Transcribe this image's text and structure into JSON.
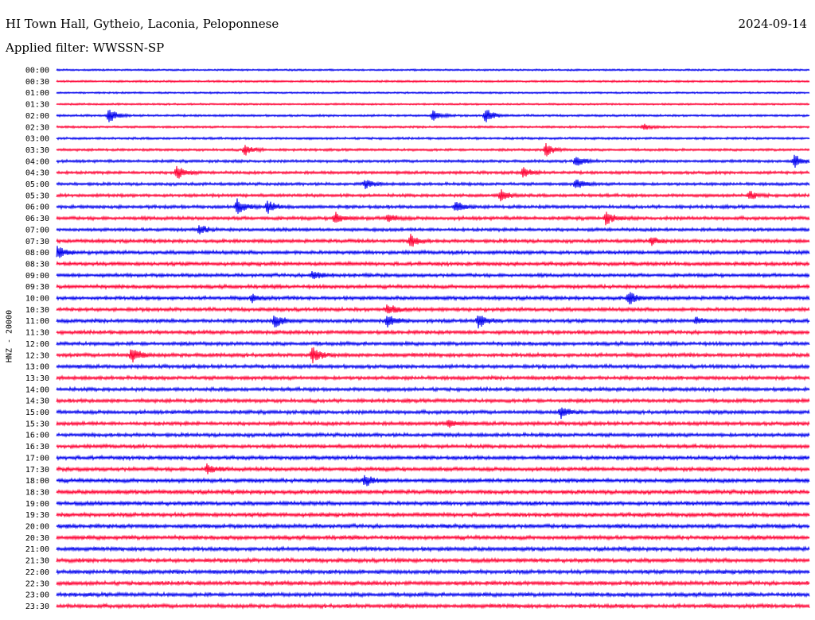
{
  "header": {
    "station": "HI Town Hall, Gytheio, Laconia, Peloponnese",
    "date": "2024-09-14",
    "filter": "Applied filter: WWSSN-SP"
  },
  "chart_data": {
    "type": "line",
    "ylabel": "HNZ - 20000",
    "colors": {
      "even_rows": "#0000ee",
      "odd_rows": "#ff0033"
    },
    "rows": [
      "00:00",
      "00:30",
      "01:00",
      "01:30",
      "02:00",
      "02:30",
      "03:00",
      "03:30",
      "04:00",
      "04:30",
      "05:00",
      "05:30",
      "06:00",
      "06:30",
      "07:00",
      "07:30",
      "08:00",
      "08:30",
      "09:00",
      "09:30",
      "10:00",
      "10:30",
      "11:00",
      "11:30",
      "12:00",
      "12:30",
      "13:00",
      "13:30",
      "14:00",
      "14:30",
      "15:00",
      "15:30",
      "16:00",
      "16:30",
      "17:00",
      "17:30",
      "18:00",
      "18:30",
      "19:00",
      "19:30",
      "20:00",
      "20:30",
      "21:00",
      "21:30",
      "22:00",
      "22:30",
      "23:00",
      "23:30"
    ],
    "noise_level": [
      0.25,
      0.3,
      0.25,
      0.25,
      0.35,
      0.35,
      0.4,
      0.45,
      0.55,
      0.6,
      0.6,
      0.65,
      0.7,
      0.75,
      0.7,
      0.75,
      0.8,
      0.8,
      0.75,
      0.8,
      0.8,
      0.8,
      0.8,
      0.8,
      0.8,
      0.85,
      0.8,
      0.8,
      0.8,
      0.8,
      0.8,
      0.8,
      0.8,
      0.8,
      0.85,
      0.85,
      0.9,
      0.9,
      0.9,
      0.9,
      0.9,
      0.9,
      0.9,
      0.9,
      0.9,
      0.9,
      0.9,
      0.9
    ],
    "events": [
      {
        "row": 4,
        "t": 0.07,
        "amp": 1.0
      },
      {
        "row": 4,
        "t": 0.5,
        "amp": 0.7
      },
      {
        "row": 4,
        "t": 0.57,
        "amp": 1.0
      },
      {
        "row": 5,
        "t": 0.78,
        "amp": 0.4
      },
      {
        "row": 7,
        "t": 0.25,
        "amp": 0.8
      },
      {
        "row": 7,
        "t": 0.65,
        "amp": 0.9
      },
      {
        "row": 8,
        "t": 0.69,
        "amp": 0.8
      },
      {
        "row": 8,
        "t": 0.98,
        "amp": 1.0
      },
      {
        "row": 9,
        "t": 0.16,
        "amp": 1.0
      },
      {
        "row": 9,
        "t": 0.62,
        "amp": 0.7
      },
      {
        "row": 10,
        "t": 0.41,
        "amp": 0.6
      },
      {
        "row": 10,
        "t": 0.69,
        "amp": 0.7
      },
      {
        "row": 11,
        "t": 0.59,
        "amp": 0.8
      },
      {
        "row": 11,
        "t": 0.92,
        "amp": 0.6
      },
      {
        "row": 12,
        "t": 0.24,
        "amp": 1.0
      },
      {
        "row": 12,
        "t": 0.28,
        "amp": 0.9
      },
      {
        "row": 12,
        "t": 0.53,
        "amp": 0.7
      },
      {
        "row": 13,
        "t": 0.37,
        "amp": 0.8
      },
      {
        "row": 13,
        "t": 0.44,
        "amp": 0.6
      },
      {
        "row": 13,
        "t": 0.73,
        "amp": 0.9
      },
      {
        "row": 14,
        "t": 0.19,
        "amp": 0.6
      },
      {
        "row": 15,
        "t": 0.47,
        "amp": 0.9
      },
      {
        "row": 15,
        "t": 0.79,
        "amp": 0.5
      },
      {
        "row": 16,
        "t": 0.0,
        "amp": 1.0
      },
      {
        "row": 18,
        "t": 0.34,
        "amp": 0.6
      },
      {
        "row": 20,
        "t": 0.26,
        "amp": 0.5
      },
      {
        "row": 20,
        "t": 0.76,
        "amp": 0.9
      },
      {
        "row": 21,
        "t": 0.44,
        "amp": 0.8
      },
      {
        "row": 22,
        "t": 0.29,
        "amp": 0.9
      },
      {
        "row": 22,
        "t": 0.44,
        "amp": 0.9
      },
      {
        "row": 22,
        "t": 0.56,
        "amp": 1.0
      },
      {
        "row": 22,
        "t": 0.85,
        "amp": 0.5
      },
      {
        "row": 25,
        "t": 0.1,
        "amp": 1.0
      },
      {
        "row": 25,
        "t": 0.34,
        "amp": 1.0
      },
      {
        "row": 30,
        "t": 0.67,
        "amp": 0.8
      },
      {
        "row": 31,
        "t": 0.52,
        "amp": 0.5
      },
      {
        "row": 35,
        "t": 0.2,
        "amp": 0.7
      },
      {
        "row": 36,
        "t": 0.41,
        "amp": 0.8
      }
    ]
  }
}
